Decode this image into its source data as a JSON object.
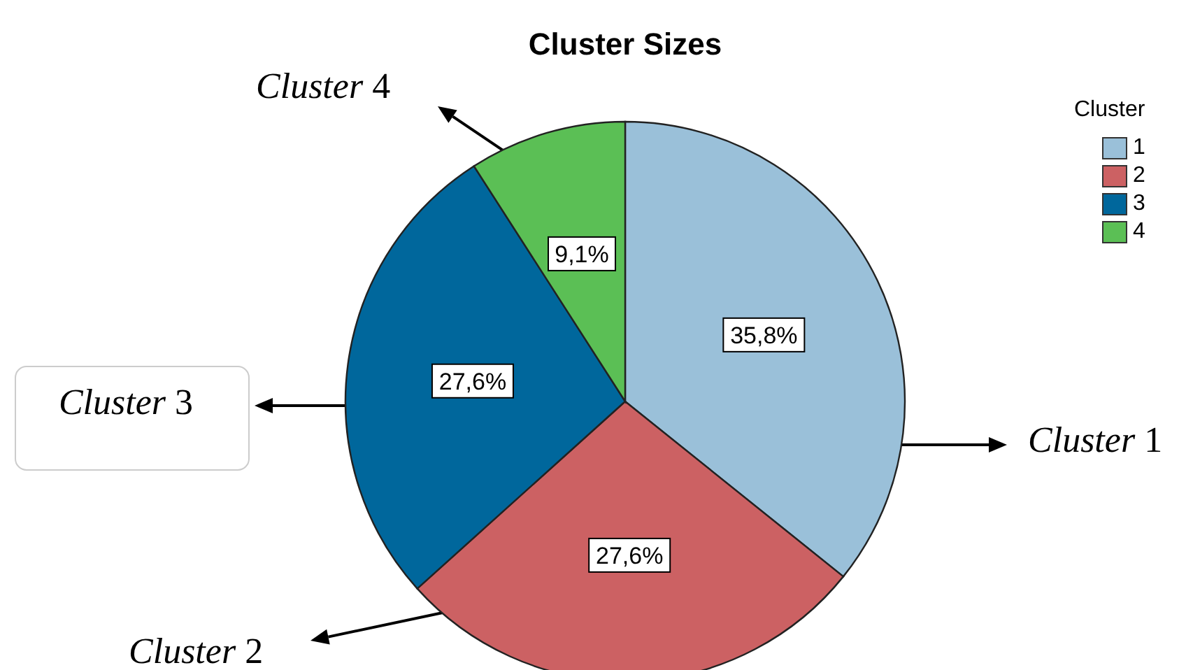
{
  "chart_data": {
    "type": "pie",
    "title": "Cluster Sizes",
    "legend_title": "Cluster",
    "legend": "top right",
    "categories": [
      "1",
      "2",
      "3",
      "4"
    ],
    "values": [
      35.8,
      27.6,
      27.6,
      9.1
    ],
    "value_labels": [
      "35,8%",
      "27,6%",
      "27,6%",
      "9,1%"
    ],
    "colors": [
      "#9ac0d9",
      "#cc6163",
      "#00679c",
      "#5bbf55"
    ],
    "annotations": [
      "Cluster 1",
      "Cluster 2",
      "Cluster 3",
      "Cluster 4"
    ]
  }
}
